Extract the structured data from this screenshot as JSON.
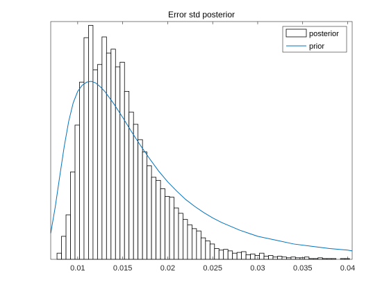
{
  "chart_data": {
    "type": "bar",
    "title": "Error std posterior",
    "xlabel": "",
    "ylabel": "",
    "xlim": [
      0.007,
      0.0405
    ],
    "ylim": [
      0,
      310
    ],
    "grid": false,
    "legend_placement": "top-right",
    "x_ticks": [
      0.01,
      0.015,
      0.02,
      0.025,
      0.03,
      0.035,
      0.04
    ],
    "x_tick_labels": [
      "0.01",
      "0.015",
      "0.02",
      "0.025",
      "0.03",
      "0.035",
      "0.04"
    ],
    "bin_width": 0.0005,
    "series": [
      {
        "name": "posterior",
        "kind": "histogram",
        "color": "#000000",
        "fill": "#ffffff",
        "bin_starts": [
          0.0077,
          0.0082,
          0.0087,
          0.0092,
          0.0097,
          0.0102,
          0.0107,
          0.0112,
          0.0117,
          0.0122,
          0.0127,
          0.0132,
          0.0137,
          0.0142,
          0.0147,
          0.0152,
          0.0157,
          0.0162,
          0.0167,
          0.0172,
          0.0177,
          0.0182,
          0.0187,
          0.0192,
          0.0197,
          0.0202,
          0.0207,
          0.0212,
          0.0217,
          0.0222,
          0.0227,
          0.0232,
          0.0237,
          0.0242,
          0.0247,
          0.0252,
          0.0257,
          0.0262,
          0.0267,
          0.0272,
          0.0277,
          0.0282,
          0.0287,
          0.0292,
          0.0297,
          0.0302,
          0.0307,
          0.0312,
          0.0317,
          0.0322,
          0.0327,
          0.0332,
          0.0337,
          0.0342,
          0.0347,
          0.0352,
          0.0357,
          0.0362,
          0.0367,
          0.0372,
          0.0377,
          0.0382,
          0.0387,
          0.0392,
          0.0397
        ],
        "counts": [
          8,
          30,
          58,
          114,
          175,
          231,
          289,
          305,
          247,
          254,
          290,
          269,
          274,
          251,
          257,
          219,
          192,
          176,
          156,
          140,
          122,
          107,
          103,
          92,
          82,
          81,
          67,
          60,
          52,
          45,
          40,
          37,
          28,
          24,
          20,
          14,
          12,
          13,
          11,
          8,
          9,
          10,
          6,
          7,
          5,
          8,
          4,
          5,
          3,
          4,
          3,
          2,
          3,
          2,
          2,
          3,
          1,
          1,
          2,
          1,
          1,
          1,
          0,
          1,
          1
        ]
      },
      {
        "name": "prior",
        "kind": "line",
        "color": "#0072bd",
        "x": [
          0.007,
          0.0075,
          0.008,
          0.0085,
          0.009,
          0.0095,
          0.01,
          0.0105,
          0.011,
          0.0115,
          0.012,
          0.0125,
          0.013,
          0.0135,
          0.014,
          0.0145,
          0.015,
          0.016,
          0.017,
          0.018,
          0.019,
          0.02,
          0.021,
          0.022,
          0.023,
          0.024,
          0.025,
          0.026,
          0.027,
          0.028,
          0.029,
          0.03,
          0.032,
          0.034,
          0.036,
          0.038,
          0.04,
          0.0405
        ],
        "y": [
          34,
          68,
          108,
          147,
          180,
          204,
          219,
          227,
          231,
          232,
          230,
          225,
          219,
          211,
          203,
          194,
          185,
          166,
          148,
          131,
          115,
          101,
          89,
          78,
          69,
          61,
          54,
          48,
          43,
          38,
          34,
          30,
          25,
          20,
          17,
          14,
          12,
          11
        ]
      }
    ]
  }
}
